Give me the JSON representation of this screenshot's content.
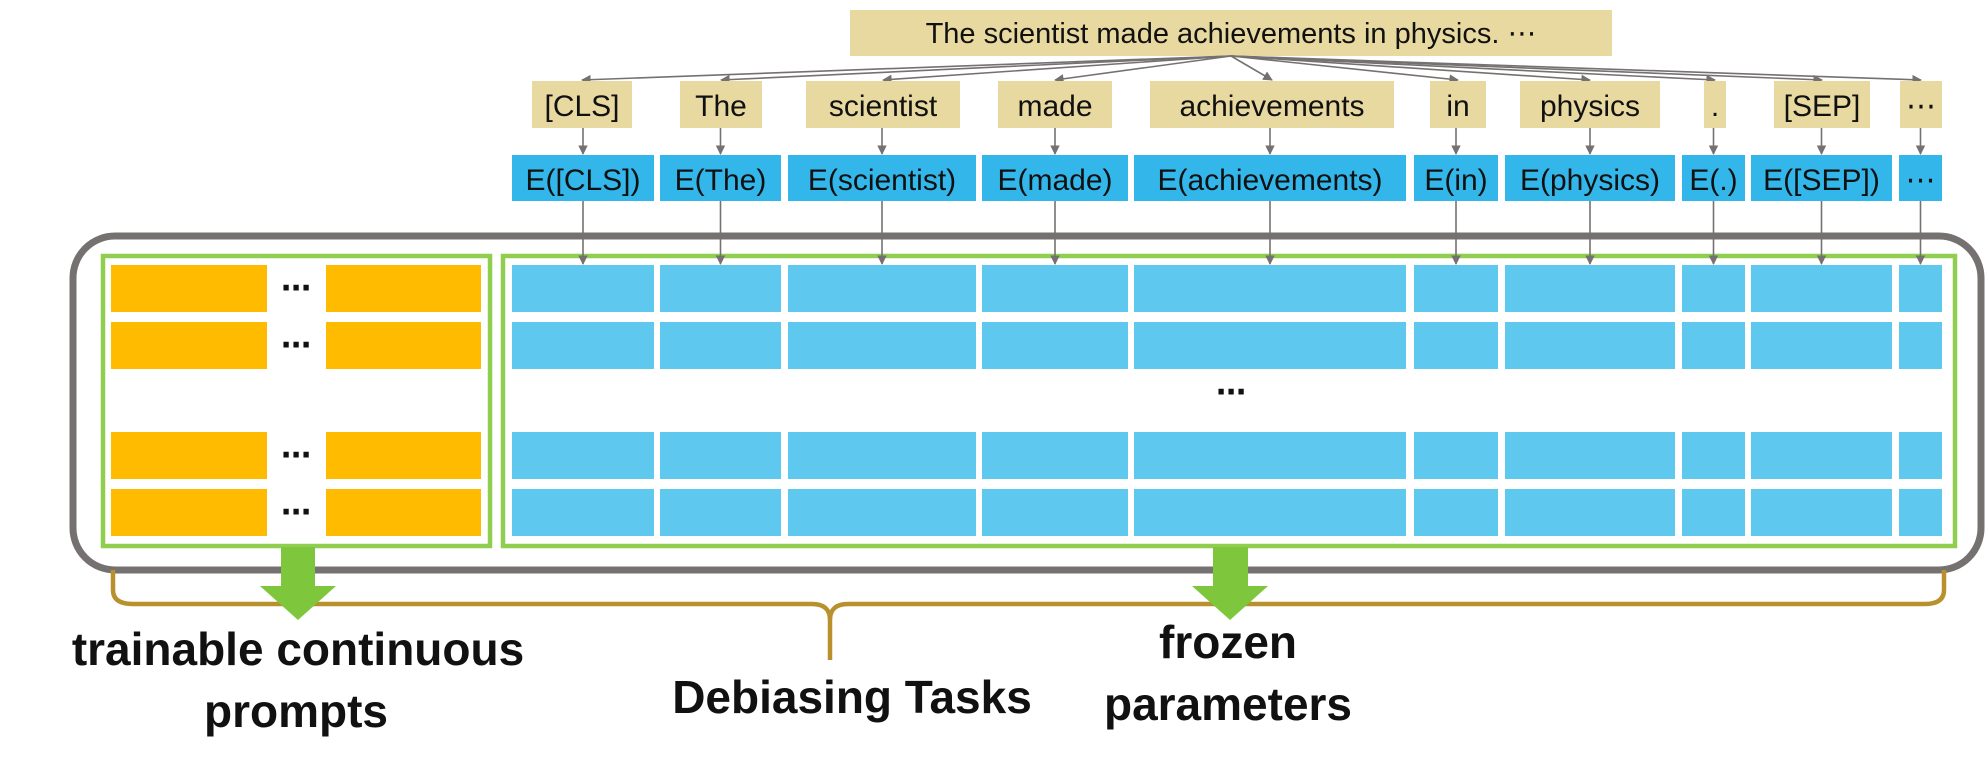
{
  "sentence": "The scientist made achievements in physics. ⋯",
  "tokens": [
    "[CLS]",
    "The",
    "scientist",
    "made",
    "achievements",
    "in",
    "physics",
    ".",
    "[SEP]",
    "⋯"
  ],
  "embeddings": [
    "E([CLS])",
    "E(The)",
    "E(scientist)",
    "E(made)",
    "E(achievements)",
    "E(in)",
    "E(physics)",
    "E(.)",
    "E([SEP])",
    "⋯"
  ],
  "ellipsis": "⋯",
  "labels": {
    "trainable_line1": "trainable continuous",
    "trainable_line2": "prompts",
    "frozen_line1": "frozen",
    "frozen_line2": "parameters",
    "tasks": "Debiasing Tasks"
  },
  "colors": {
    "token_bg": "#e8d9a0",
    "embedding_bg": "#33b6ea",
    "frozen_cell": "#5ec8ee",
    "prompt_cell": "#ffbb00",
    "green_border": "#8fce4e",
    "outer_border": "#767171",
    "brace": "#b8912c",
    "arrow_green": "#7ec63c"
  }
}
